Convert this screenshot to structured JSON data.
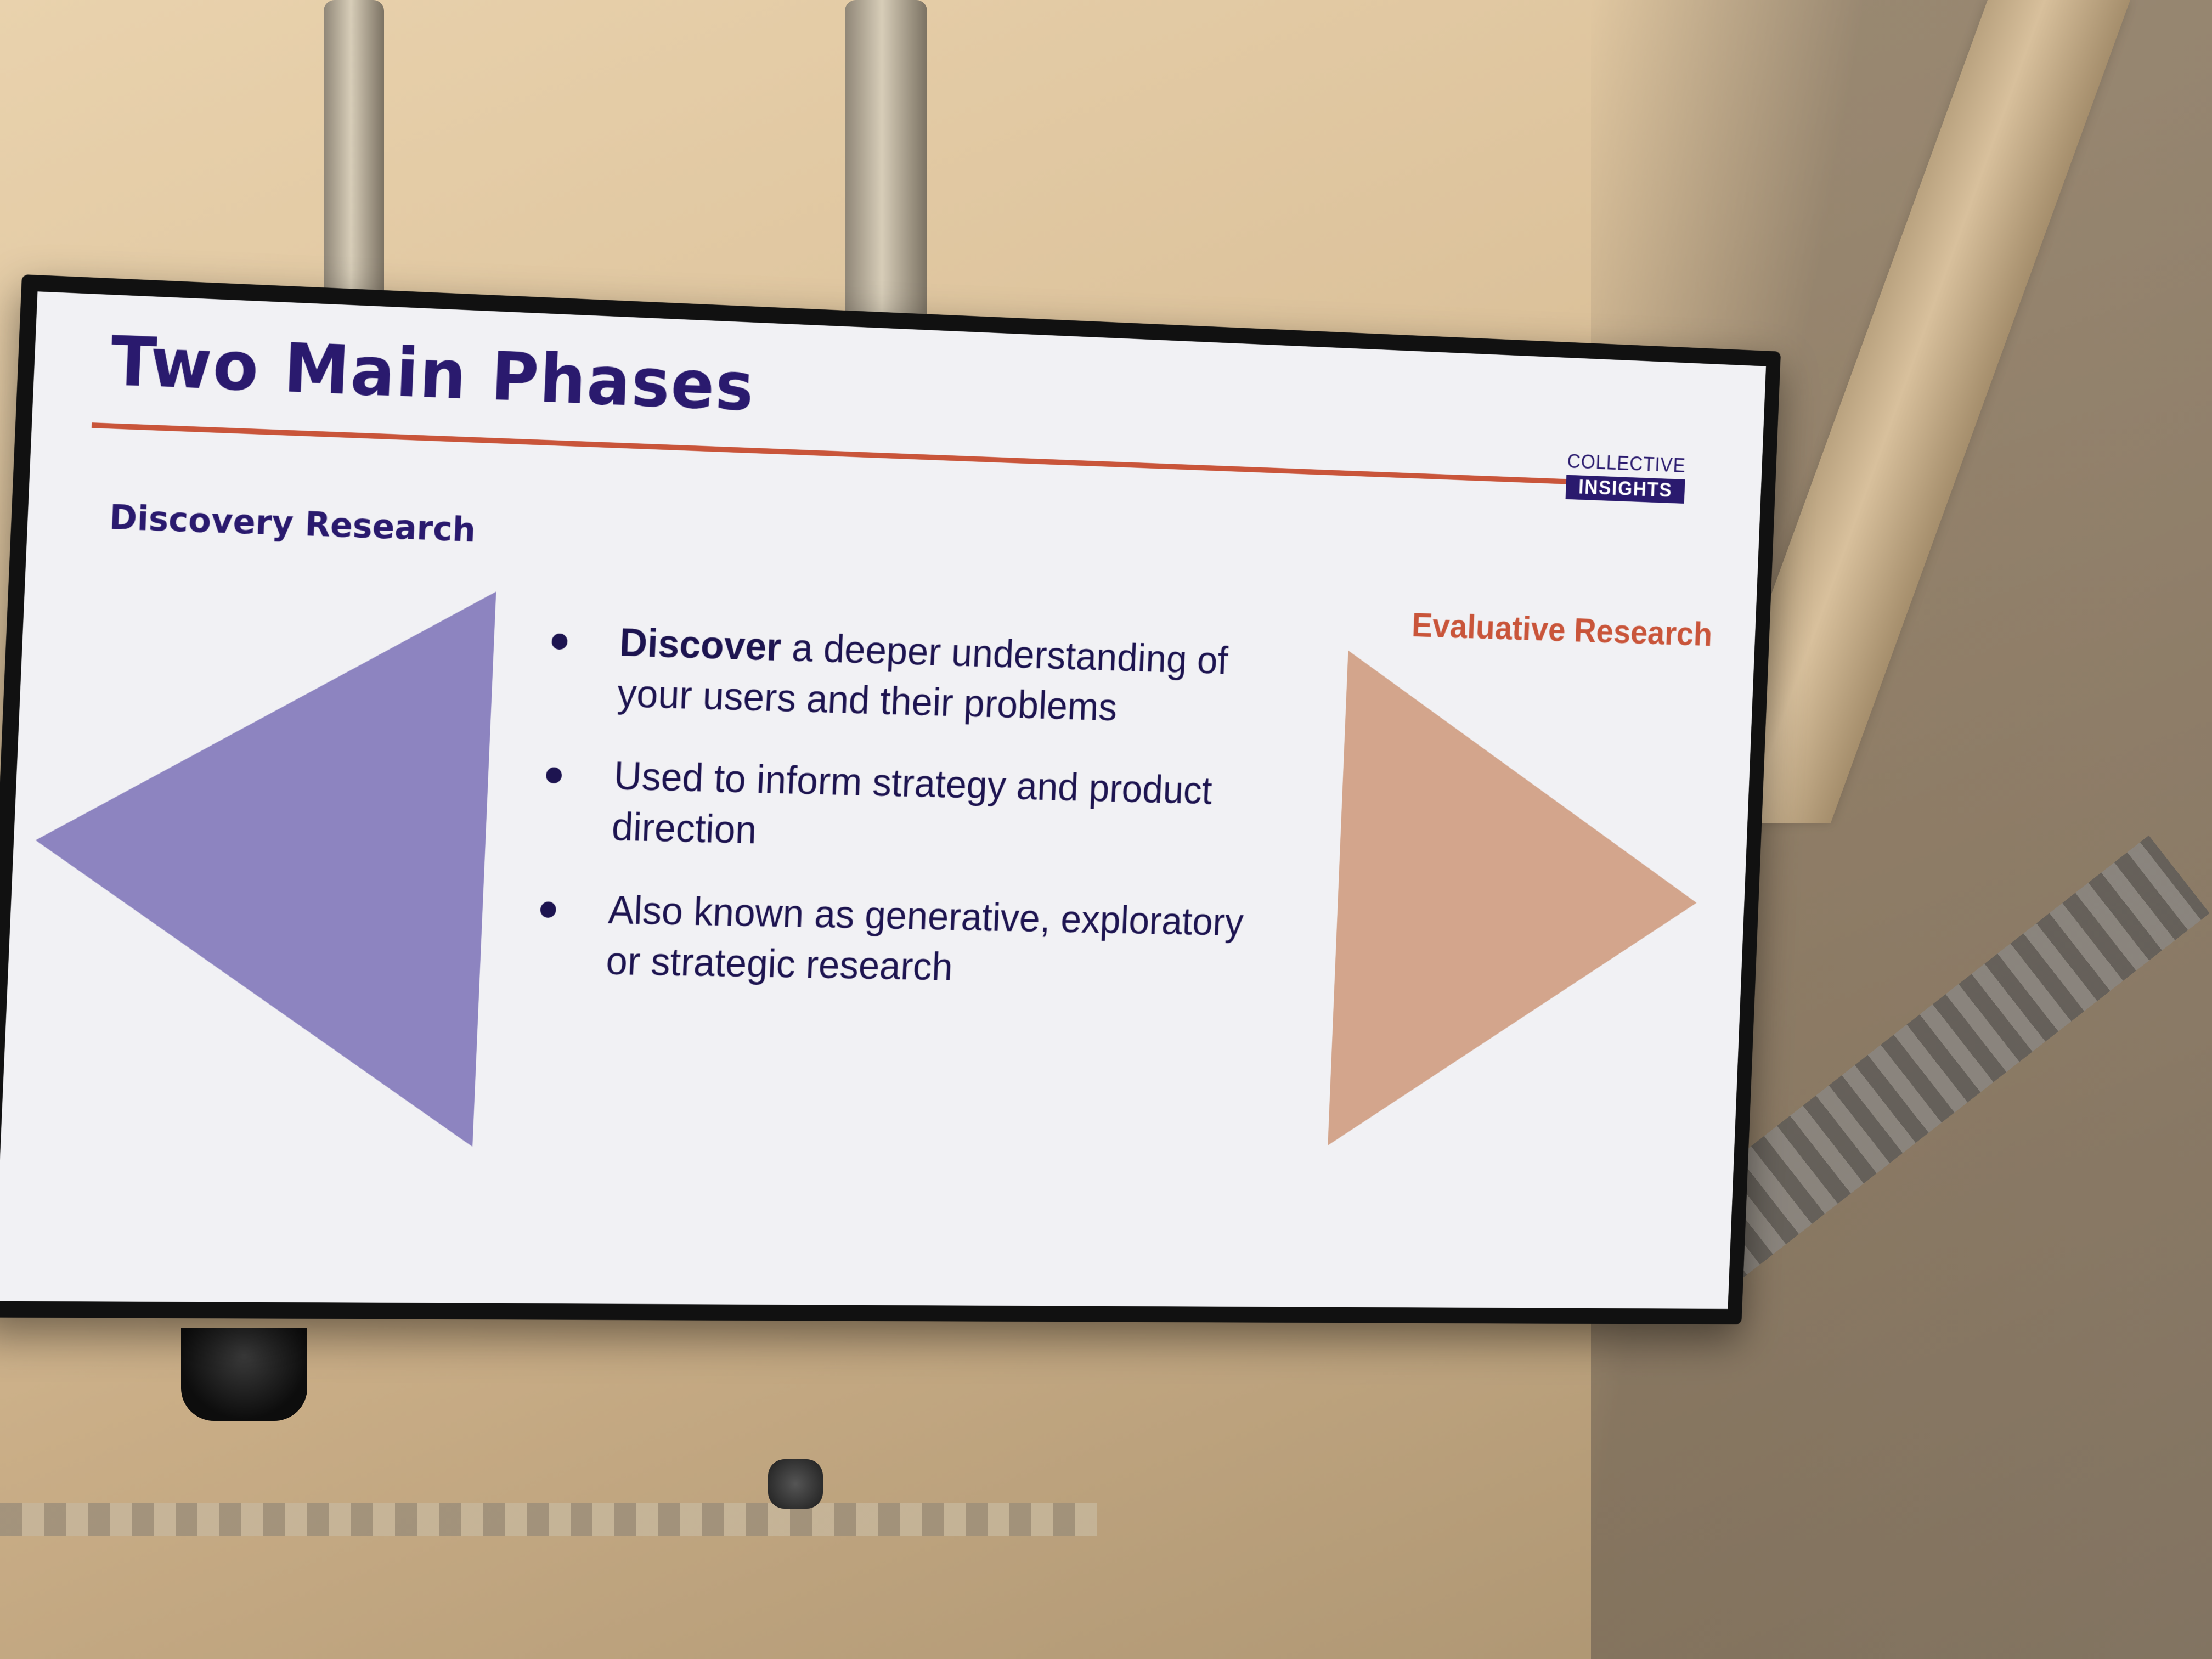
{
  "slide": {
    "title": "Two Main Phases",
    "logo": {
      "top": "COLLECTIVE",
      "bottom": "INSIGHTS"
    },
    "left_heading": "Discovery Research",
    "right_heading": "Evaluative Research",
    "bullets": [
      {
        "bold": "Discover",
        "rest": " a deeper understanding of your users and their problems"
      },
      {
        "text": "Used to inform strategy and product direction"
      },
      {
        "text": "Also known as generative, exploratory or strategic research"
      }
    ]
  },
  "colors": {
    "title": "#2a1a6e",
    "rule": "#c9553a",
    "left_triangle": "#8d84c0",
    "right_triangle": "#d3a58c",
    "right_heading": "#c9553a",
    "slide_background": "#f1f1f4"
  }
}
